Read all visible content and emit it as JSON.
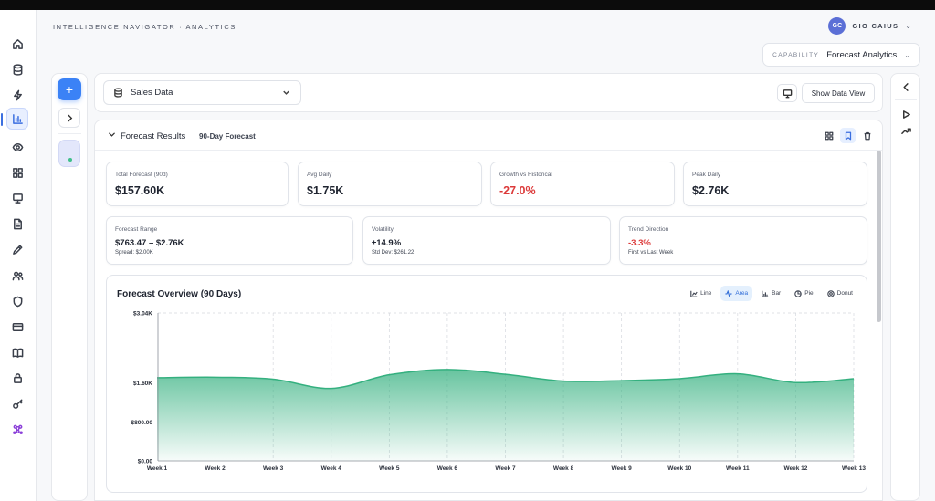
{
  "app": {
    "title": "INTELLIGENCE NAVIGATOR · ANALYTICS"
  },
  "user": {
    "initials": "GC",
    "name": "GIO CAIUS"
  },
  "capability": {
    "label": "CAPABILITY",
    "value": "Forecast Analytics"
  },
  "nav": {
    "items": [
      "home-icon",
      "database-icon",
      "lightning-icon",
      "bar-chart-icon",
      "eye-icon",
      "grid-icon",
      "presentation-icon",
      "document-icon",
      "pen-icon",
      "users-icon",
      "shield-icon",
      "card-icon",
      "book-icon",
      "lock-icon",
      "key-icon",
      "molecule-icon"
    ],
    "active": "bar-chart-icon"
  },
  "source": {
    "label": "Sales Data",
    "show_data_label": "Show Data View"
  },
  "forecast": {
    "title": "Forecast Results",
    "subtitle": "90-Day Forecast",
    "stats": [
      {
        "label": "Total Forecast (90d)",
        "value": "$157.60K"
      },
      {
        "label": "Avg Daily",
        "value": "$1.75K"
      },
      {
        "label": "Growth vs Historical",
        "value": "-27.0%"
      },
      {
        "label": "Peak Daily",
        "value": "$2.76K"
      }
    ],
    "range": {
      "label": "Forecast Range",
      "value": "$763.47 – $2.76K",
      "note": "Spread: $2.00K"
    },
    "volatility": {
      "label": "Volatility",
      "value": "±14.9%",
      "note": "Std Dev: $261.22"
    },
    "trend": {
      "label": "Trend Direction",
      "value": "-3.3%",
      "note": "First vs Last Week"
    }
  },
  "chart_tabs": [
    "Line",
    "Area",
    "Bar",
    "Pie",
    "Donut"
  ],
  "chart_tab_active": "Area",
  "colors": {
    "accent": "#3b82f6",
    "series": "#34b07f",
    "negative": "#dc3a3a"
  },
  "chart_data": {
    "type": "area",
    "title": "Forecast Overview (90 Days)",
    "xlabel": "",
    "ylabel": "",
    "categories": [
      "Week 1",
      "Week 2",
      "Week 3",
      "Week 4",
      "Week 5",
      "Week 6",
      "Week 7",
      "Week 8",
      "Week 9",
      "Week 10",
      "Week 11",
      "Week 12",
      "Week 13"
    ],
    "values": [
      1710,
      1720,
      1680,
      1490,
      1770,
      1880,
      1780,
      1640,
      1650,
      1690,
      1790,
      1610,
      1690
    ],
    "y_ticks": [
      0,
      800,
      1600,
      3040
    ],
    "y_tick_labels": [
      "$0.00",
      "$800.00",
      "$1.60K",
      "$3.04K"
    ],
    "ylim": [
      0,
      3040
    ],
    "grid": "vertical-dashed",
    "legend": "none"
  }
}
